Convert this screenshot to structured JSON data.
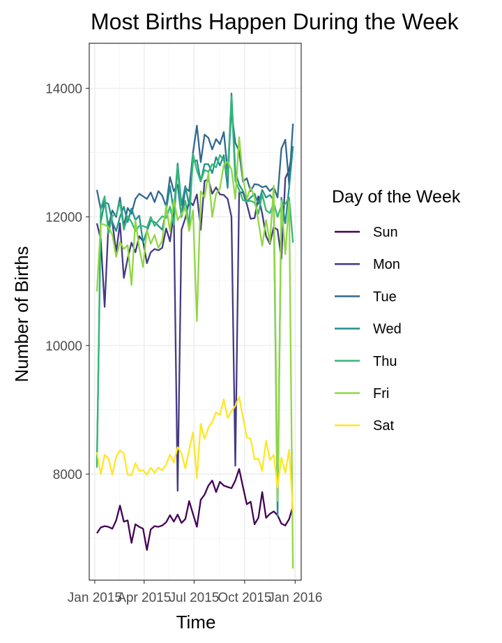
{
  "chart_data": {
    "type": "line",
    "title": "Most Births Happen During the Week",
    "xlabel": "Time",
    "ylabel": "Number of Births",
    "x_ticks": [
      "Jan 2015",
      "Apr 2015",
      "Jul 2015",
      "Oct 2015",
      "Jan 2016"
    ],
    "y_ticks": [
      8000,
      10000,
      12000,
      14000
    ],
    "xlim": [
      "2014-12-22",
      "2016-01-12"
    ],
    "ylim": [
      6350,
      14700
    ],
    "grid": true,
    "legend": {
      "title": "Day of the Week",
      "position": "right"
    },
    "x": [
      "2015-01-05",
      "2015-01-12",
      "2015-01-19",
      "2015-01-26",
      "2015-02-02",
      "2015-02-09",
      "2015-02-16",
      "2015-02-23",
      "2015-03-02",
      "2015-03-09",
      "2015-03-16",
      "2015-03-23",
      "2015-03-30",
      "2015-04-06",
      "2015-04-13",
      "2015-04-20",
      "2015-04-27",
      "2015-05-04",
      "2015-05-11",
      "2015-05-18",
      "2015-05-25",
      "2015-06-01",
      "2015-06-08",
      "2015-06-15",
      "2015-06-22",
      "2015-06-29",
      "2015-07-06",
      "2015-07-13",
      "2015-07-20",
      "2015-07-27",
      "2015-08-03",
      "2015-08-10",
      "2015-08-17",
      "2015-08-24",
      "2015-08-31",
      "2015-09-07",
      "2015-09-14",
      "2015-09-21",
      "2015-09-28",
      "2015-10-05",
      "2015-10-12",
      "2015-10-19",
      "2015-10-26",
      "2015-11-02",
      "2015-11-09",
      "2015-11-16",
      "2015-11-23",
      "2015-11-30",
      "2015-12-07",
      "2015-12-14",
      "2015-12-21",
      "2015-12-28"
    ],
    "series": [
      {
        "name": "Sun",
        "color": "#440154",
        "values": [
          7080,
          7170,
          7190,
          7180,
          7150,
          7280,
          7510,
          7260,
          7280,
          6930,
          7220,
          7180,
          7150,
          6820,
          7140,
          7190,
          7180,
          7200,
          7250,
          7360,
          7260,
          7370,
          7240,
          7300,
          7580,
          7380,
          7180,
          7600,
          7680,
          7820,
          7900,
          7720,
          7880,
          7820,
          7800,
          7780,
          7900,
          8080,
          7800,
          7530,
          7570,
          7220,
          7320,
          7720,
          7320,
          7380,
          7420,
          7360,
          7230,
          7200,
          7300,
          7500
        ]
      },
      {
        "name": "Mon",
        "color": "#443a83",
        "values": [
          11900,
          11650,
          10600,
          11900,
          11920,
          11450,
          11900,
          11050,
          11350,
          11600,
          11450,
          11700,
          11620,
          11280,
          11450,
          11500,
          11480,
          11520,
          11820,
          11620,
          12060,
          7740,
          11800,
          11980,
          12250,
          12180,
          12350,
          11800,
          12560,
          12580,
          12360,
          12460,
          12350,
          12340,
          12280,
          12000,
          8130,
          12380,
          12380,
          12200,
          11970,
          11980,
          12320,
          12050,
          11700,
          11580,
          11840,
          11800,
          11350,
          12600,
          12730,
          13100
        ]
      },
      {
        "name": "Tue",
        "color": "#31688e",
        "values": [
          12420,
          12120,
          12240,
          11850,
          12100,
          12000,
          12300,
          11850,
          12140,
          12050,
          12280,
          12360,
          12320,
          12280,
          12380,
          12230,
          12400,
          12330,
          12160,
          12620,
          12400,
          12500,
          12000,
          12450,
          12400,
          13000,
          13420,
          12850,
          13280,
          13230,
          13050,
          13210,
          13130,
          13320,
          12700,
          13650,
          13150,
          13020,
          12550,
          12600,
          12400,
          12510,
          12500,
          12460,
          12480,
          12400,
          12460,
          12300,
          13060,
          13200,
          12500,
          13450
        ]
      },
      {
        "name": "Wed",
        "color": "#21918c",
        "values": [
          8200,
          11920,
          12230,
          12200,
          11920,
          11780,
          12000,
          12160,
          11920,
          12130,
          11950,
          12020,
          11600,
          11780,
          11940,
          11920,
          11860,
          11800,
          12100,
          12480,
          12080,
          12830,
          12180,
          12480,
          12180,
          12860,
          12880,
          12550,
          12820,
          12820,
          12680,
          12930,
          12800,
          12960,
          12450,
          13920,
          12710,
          12500,
          12400,
          12240,
          12300,
          12360,
          12200,
          12420,
          12300,
          12340,
          12260,
          7340,
          12300,
          11900,
          12460,
          13100
        ]
      },
      {
        "name": "Thu",
        "color": "#35b779",
        "values": [
          8100,
          12130,
          12320,
          11740,
          12020,
          12030,
          12230,
          11800,
          12010,
          11920,
          11780,
          11860,
          11860,
          11830,
          12000,
          11860,
          11940,
          12010,
          11980,
          12160,
          11880,
          12780,
          12000,
          12250,
          11860,
          12980,
          12720,
          12550,
          12730,
          12700,
          12820,
          12770,
          12960,
          12880,
          12650,
          13870,
          12560,
          12420,
          12260,
          12240,
          12250,
          12220,
          12050,
          12350,
          12100,
          12060,
          12220,
          12000,
          12170,
          12200,
          12300,
          11600
        ]
      },
      {
        "name": "Fri",
        "color": "#90d743",
        "values": [
          10840,
          11890,
          11880,
          11840,
          11720,
          11380,
          11610,
          11500,
          11560,
          10940,
          11950,
          11520,
          11220,
          11800,
          11580,
          11720,
          11520,
          11630,
          12180,
          11780,
          12270,
          11950,
          12040,
          12140,
          11780,
          12100,
          10380,
          12400,
          12300,
          12680,
          12000,
          12360,
          12440,
          12810,
          12860,
          12740,
          12280,
          13240,
          12610,
          12280,
          12460,
          12300,
          11930,
          11550,
          11950,
          11600,
          12490,
          7580,
          12250,
          11420,
          12240,
          6530
        ]
      },
      {
        "name": "Sat",
        "color": "#fde725",
        "values": [
          8340,
          8000,
          8300,
          8240,
          7990,
          8270,
          8370,
          8320,
          7990,
          7980,
          8170,
          8050,
          8060,
          7990,
          8100,
          8020,
          8100,
          8060,
          8150,
          8300,
          8180,
          8420,
          8320,
          8090,
          8380,
          8650,
          7940,
          8780,
          8550,
          8720,
          8810,
          8960,
          8920,
          9160,
          8870,
          8980,
          9060,
          9200,
          8880,
          8570,
          8550,
          8230,
          8240,
          8050,
          8520,
          8220,
          8300,
          7790,
          8260,
          8020,
          8380,
          7430
        ]
      }
    ]
  }
}
